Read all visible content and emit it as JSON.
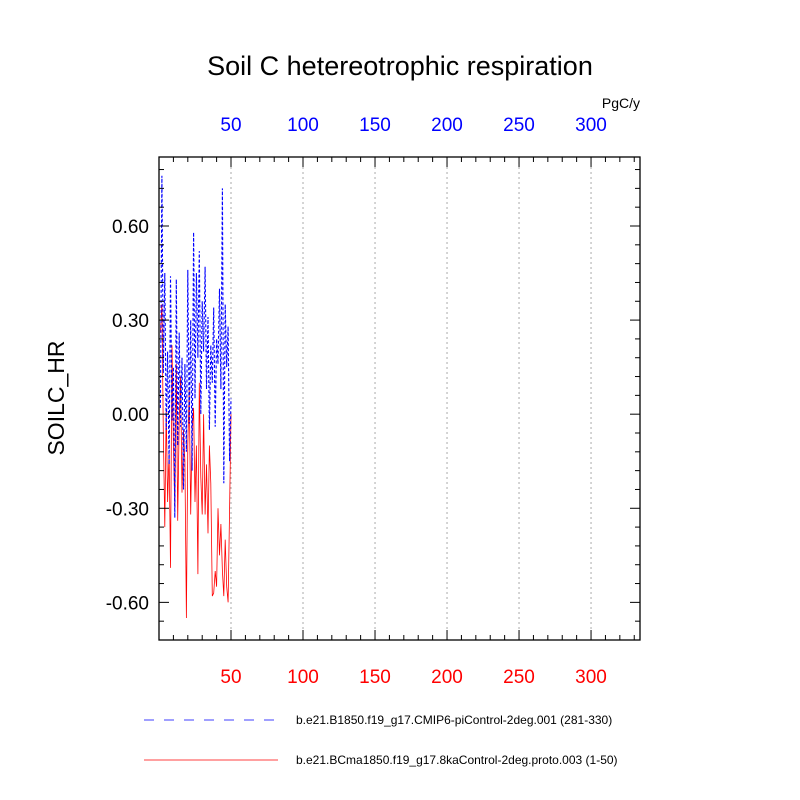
{
  "chart_data": {
    "type": "line",
    "title": "Soil C hetereotrophic respiration",
    "ylabel": "SOILC_HR",
    "units_label": "PgC/y",
    "xlim": [
      0,
      334
    ],
    "ylim": [
      -0.72,
      0.82
    ],
    "x_ticks": [
      50,
      100,
      150,
      200,
      250,
      300
    ],
    "x_tick_labels": [
      "50",
      "100",
      "150",
      "200",
      "250",
      "300"
    ],
    "y_ticks": [
      -0.6,
      -0.3,
      0.0,
      0.3,
      0.6
    ],
    "y_tick_labels": [
      "-0.60",
      "-0.30",
      "0.00",
      "0.30",
      "0.60"
    ],
    "top_axis_color": "#0000ff",
    "bottom_axis_color": "#ff0000",
    "grid": "vertical dotted at major x ticks",
    "series": [
      {
        "name": "b.e21.B1850.f19_g17.CMIP6-piControl-2deg.001 (281-330)",
        "color": "#0000ff",
        "dash": "dashed",
        "x": [
          1,
          2,
          3,
          4,
          5,
          6,
          7,
          8,
          9,
          10,
          11,
          12,
          13,
          14,
          15,
          16,
          17,
          18,
          19,
          20,
          21,
          22,
          23,
          24,
          25,
          26,
          27,
          28,
          29,
          30,
          31,
          32,
          33,
          34,
          35,
          36,
          37,
          38,
          39,
          40,
          41,
          42,
          43,
          44,
          45,
          46,
          47,
          48,
          49,
          50
        ],
        "values": [
          0.02,
          0.76,
          0.13,
          0.45,
          -0.05,
          0.2,
          -0.16,
          0.44,
          -0.02,
          0.15,
          -0.33,
          0.43,
          -0.1,
          0.26,
          -0.04,
          0.18,
          -0.24,
          0.16,
          -0.12,
          0.46,
          -0.03,
          0.3,
          -0.18,
          0.58,
          0.05,
          0.45,
          0.18,
          0.52,
          0.0,
          0.36,
          0.2,
          0.47,
          0.08,
          0.31,
          -0.05,
          0.22,
          0.1,
          0.34,
          -0.04,
          0.24,
          0.16,
          0.4,
          0.08,
          0.72,
          -0.22,
          0.35,
          0.15,
          0.28,
          -0.15,
          0.05
        ]
      },
      {
        "name": "b.e21.BCma1850.f19_g17.8kaControl-2deg.proto.003 (1-50)",
        "color": "#ff0000",
        "dash": "solid",
        "x": [
          1,
          2,
          3,
          4,
          5,
          6,
          7,
          8,
          9,
          10,
          11,
          12,
          13,
          14,
          15,
          16,
          17,
          18,
          19,
          20,
          21,
          22,
          23,
          24,
          25,
          26,
          27,
          28,
          29,
          30,
          31,
          32,
          33,
          34,
          35,
          36,
          37,
          38,
          39,
          40,
          41,
          42,
          43,
          44,
          45,
          46,
          47,
          48,
          49,
          50
        ],
        "values": [
          0.26,
          0.35,
          -0.05,
          -0.36,
          0.02,
          -0.28,
          -0.12,
          -0.49,
          0.22,
          -0.1,
          -0.3,
          0.16,
          -0.34,
          -0.02,
          0.12,
          -0.25,
          -0.05,
          -0.15,
          -0.65,
          -0.1,
          0.08,
          -0.32,
          -0.05,
          0.02,
          -0.28,
          -0.1,
          -0.51,
          0.1,
          -0.2,
          -0.32,
          0.0,
          -0.32,
          -0.16,
          -0.38,
          -0.1,
          -0.22,
          -0.58,
          -0.57,
          -0.5,
          -0.55,
          -0.3,
          -0.45,
          -0.35,
          -0.5,
          -0.58,
          -0.4,
          -0.55,
          -0.6,
          -0.3,
          0.0
        ]
      }
    ]
  }
}
